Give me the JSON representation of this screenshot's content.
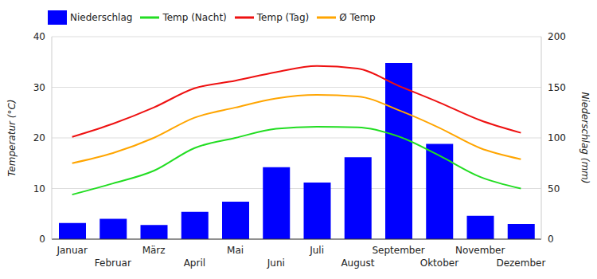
{
  "chart_data": {
    "type": "bar",
    "categories": [
      "Januar",
      "Februar",
      "März",
      "April",
      "Mai",
      "Juni",
      "Juli",
      "August",
      "September",
      "Oktober",
      "November",
      "Dezember"
    ],
    "y_label": "Temperatur (°C)",
    "y2_label": "Niederschlag (mm)",
    "ylim": [
      0,
      40
    ],
    "yticks": [
      0,
      10,
      20,
      30,
      40
    ],
    "y2lim": [
      0,
      200
    ],
    "y2ticks": [
      0,
      50,
      100,
      150,
      200
    ],
    "grid": true,
    "legend": "top-left",
    "series": [
      {
        "name": "Niederschlag",
        "type": "bar",
        "axis": "y2",
        "color": "#0000ff",
        "values": [
          16,
          20,
          14,
          27,
          37,
          71,
          56,
          81,
          174,
          94,
          23,
          15
        ]
      },
      {
        "name": "Temp (Tag)",
        "type": "line",
        "color": "#ee1111",
        "values": [
          20.2,
          22.8,
          26,
          29.8,
          31.3,
          33,
          34.2,
          33.7,
          30.3,
          27,
          23.5,
          21
        ]
      },
      {
        "name": "Ø Temp",
        "type": "line",
        "color": "#ffa500",
        "values": [
          15,
          17,
          20,
          24,
          26,
          27.8,
          28.5,
          28.2,
          25.5,
          22,
          18,
          15.8
        ]
      },
      {
        "name": "Temp (Nacht)",
        "type": "line",
        "color": "#22dd22",
        "values": [
          8.8,
          11,
          13.5,
          18,
          20,
          21.8,
          22.2,
          22.1,
          20.3,
          16.5,
          12.3,
          10
        ]
      }
    ]
  }
}
